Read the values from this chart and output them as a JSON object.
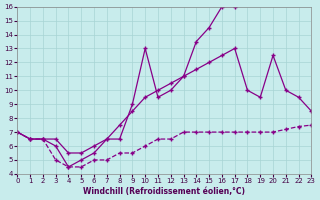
{
  "xlabel": "Windchill (Refroidissement éolien,°C)",
  "background_color": "#c8ecec",
  "grid_color": "#a8d4d4",
  "line_color": "#880088",
  "xlim": [
    0,
    23
  ],
  "ylim": [
    4,
    16
  ],
  "xticks": [
    0,
    1,
    2,
    3,
    4,
    5,
    6,
    7,
    8,
    9,
    10,
    11,
    12,
    13,
    14,
    15,
    16,
    17,
    18,
    19,
    20,
    21,
    22,
    23
  ],
  "yticks": [
    4,
    5,
    6,
    7,
    8,
    9,
    10,
    11,
    12,
    13,
    14,
    15,
    16
  ],
  "line_dashed_x": [
    0,
    1,
    2,
    3,
    4,
    5,
    6,
    7,
    8,
    9,
    10,
    11,
    12,
    13,
    14,
    15,
    16,
    17,
    18,
    19,
    20,
    21,
    22,
    23
  ],
  "line_dashed_y": [
    7.0,
    6.5,
    6.5,
    5.0,
    4.5,
    4.5,
    5.0,
    5.0,
    5.5,
    5.5,
    6.0,
    6.5,
    6.5,
    7.0,
    7.0,
    7.0,
    7.0,
    7.0,
    7.0,
    7.0,
    7.0,
    7.2,
    7.4,
    7.5
  ],
  "line_mid_x": [
    0,
    1,
    2,
    3,
    4,
    5,
    6,
    7,
    8,
    9,
    10,
    11,
    12,
    13,
    14,
    15,
    16,
    17,
    18,
    19,
    20,
    21,
    22,
    23
  ],
  "line_mid_y": [
    7.0,
    6.5,
    6.5,
    6.5,
    5.5,
    5.5,
    6.0,
    6.5,
    7.5,
    8.5,
    9.5,
    10.0,
    10.5,
    11.0,
    11.5,
    12.0,
    12.5,
    13.0,
    10.0,
    9.5,
    12.5,
    10.0,
    9.5,
    8.5
  ],
  "line_top_x": [
    0,
    1,
    2,
    3,
    4,
    5,
    6,
    7,
    8,
    9,
    10,
    11,
    12,
    13,
    14,
    15,
    16,
    17
  ],
  "line_top_y": [
    7.0,
    6.5,
    6.5,
    6.0,
    4.5,
    5.0,
    5.5,
    6.5,
    6.5,
    9.0,
    13.0,
    9.5,
    10.0,
    11.0,
    13.5,
    14.5,
    16.0,
    16.0
  ]
}
